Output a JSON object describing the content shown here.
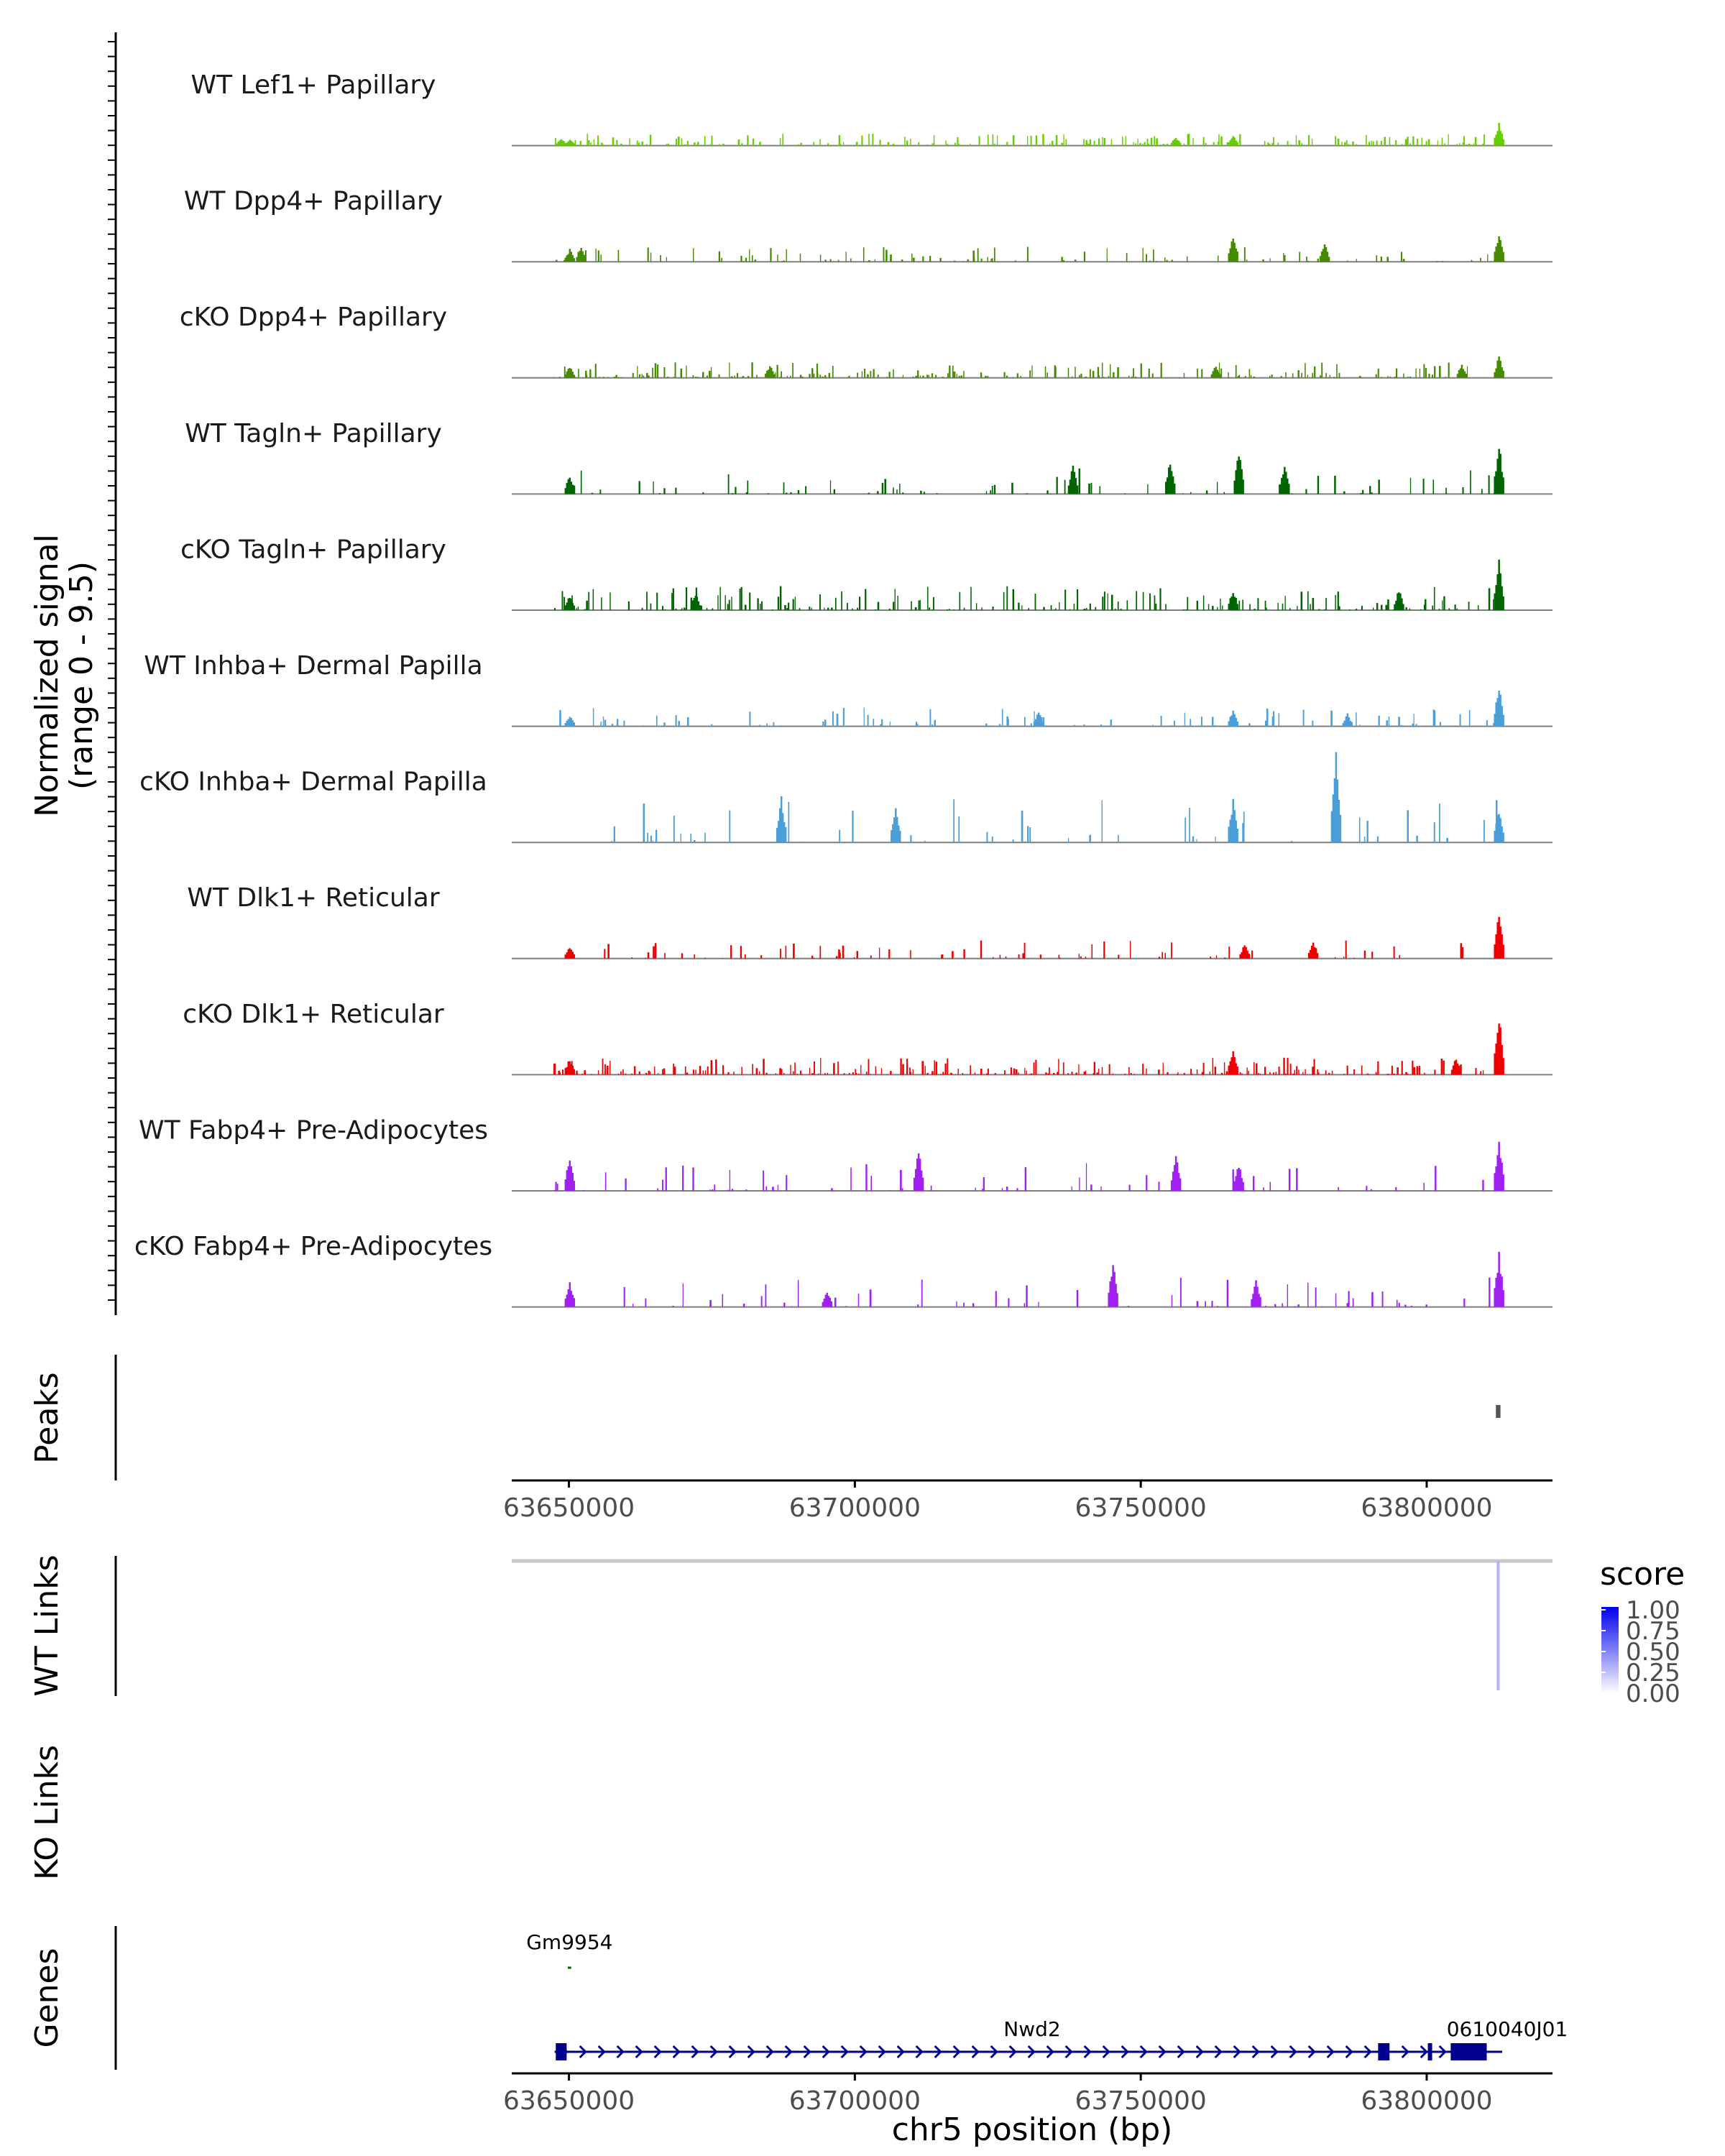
{
  "chart_data": {
    "type": "genome-coverage",
    "coverage": {
      "ylabel_line1": "Normalized signal",
      "ylabel_line2": "(range 0 - 9.5)",
      "ylim": [
        0,
        9.5
      ],
      "tracks": [
        {
          "name": "WT Lef1+ Papillary",
          "color": "#66cd00",
          "density": 0.85,
          "base": 0.35,
          "scale": 0.35,
          "peaks": [
            [
              63648500,
              0.7
            ],
            [
              63650000,
              0.6
            ],
            [
              63756000,
              0.8
            ],
            [
              63766000,
              1.0
            ],
            [
              63812500,
              2.0
            ]
          ]
        },
        {
          "name": "WT Dpp4+ Papillary",
          "color": "#458b00",
          "density": 0.35,
          "base": 0.4,
          "scale": 0.45,
          "peaks": [
            [
              63650000,
              1.1
            ],
            [
              63652000,
              1.4
            ],
            [
              63766000,
              2.6
            ],
            [
              63782000,
              1.6
            ],
            [
              63812500,
              2.6
            ]
          ]
        },
        {
          "name": "cKO Dpp4+ Papillary",
          "color": "#458b00",
          "density": 0.75,
          "base": 0.45,
          "scale": 0.45,
          "peaks": [
            [
              63650000,
              1.0
            ],
            [
              63685000,
              1.1
            ],
            [
              63763000,
              1.1
            ],
            [
              63806000,
              1.2
            ],
            [
              63812500,
              1.9
            ]
          ]
        },
        {
          "name": "WT Tagln+ Papillary",
          "color": "#006400",
          "density": 0.25,
          "base": 0.6,
          "scale": 0.9,
          "peaks": [
            [
              63650000,
              1.7
            ],
            [
              63738000,
              2.6
            ],
            [
              63755000,
              3.2
            ],
            [
              63767000,
              4.1
            ],
            [
              63775000,
              2.6
            ],
            [
              63812500,
              4.4
            ]
          ]
        },
        {
          "name": "cKO Tagln+ Papillary",
          "color": "#006400",
          "density": 0.6,
          "base": 0.55,
          "scale": 0.75,
          "peaks": [
            [
              63650000,
              1.3
            ],
            [
              63672000,
              1.6
            ],
            [
              63766000,
              1.9
            ],
            [
              63795000,
              1.9
            ],
            [
              63812500,
              4.5
            ]
          ]
        },
        {
          "name": "WT Inhba+ Dermal Papilla",
          "color": "#4a9fd8",
          "density": 0.3,
          "base": 0.5,
          "scale": 0.55,
          "peaks": [
            [
              63650000,
              1.0
            ],
            [
              63732000,
              1.4
            ],
            [
              63766000,
              1.5
            ],
            [
              63786000,
              1.1
            ],
            [
              63812500,
              3.8
            ]
          ]
        },
        {
          "name": "cKO Inhba+ Dermal Papilla",
          "color": "#4a9fd8",
          "density": 0.18,
          "base": 0.9,
          "scale": 1.4,
          "peaks": [
            [
              63687000,
              4.0
            ],
            [
              63707000,
              3.1
            ],
            [
              63766000,
              4.0
            ],
            [
              63784000,
              8.0
            ],
            [
              63812500,
              3.0
            ]
          ]
        },
        {
          "name": "WT Dlk1+ Reticular",
          "color": "#ee0000",
          "density": 0.3,
          "base": 0.45,
          "scale": 0.55,
          "peaks": [
            [
              63650000,
              1.1
            ],
            [
              63768000,
              1.3
            ],
            [
              63780000,
              1.6
            ],
            [
              63812500,
              4.2
            ]
          ]
        },
        {
          "name": "cKO Dlk1+ Reticular",
          "color": "#ee0000",
          "density": 0.8,
          "base": 0.45,
          "scale": 0.5,
          "peaks": [
            [
              63650000,
              1.5
            ],
            [
              63766000,
              2.3
            ],
            [
              63805000,
              1.6
            ],
            [
              63812500,
              5.4
            ]
          ]
        },
        {
          "name": "WT Fabp4+ Pre-Adipocytes",
          "color": "#a020f0",
          "density": 0.2,
          "base": 0.7,
          "scale": 0.9,
          "peaks": [
            [
              63650000,
              3.3
            ],
            [
              63711000,
              3.6
            ],
            [
              63756000,
              3.3
            ],
            [
              63767000,
              2.5
            ],
            [
              63812500,
              4.6
            ]
          ]
        },
        {
          "name": "cKO Fabp4+ Pre-Adipocytes",
          "color": "#a020f0",
          "density": 0.2,
          "base": 0.7,
          "scale": 0.9,
          "peaks": [
            [
              63650000,
              2.3
            ],
            [
              63695000,
              1.5
            ],
            [
              63745000,
              4.0
            ],
            [
              63770000,
              2.6
            ],
            [
              63812500,
              4.8
            ]
          ]
        }
      ]
    },
    "peaks_track": {
      "label": "Peaks",
      "peaks": [
        {
          "start": 63812100,
          "end": 63812900
        }
      ],
      "x_ticks": [
        "63650000",
        "63700000",
        "63750000",
        "63800000"
      ]
    },
    "wt_links": {
      "label": "WT Links",
      "links": [
        {
          "start": 63812400,
          "end": 63812600,
          "score": 0.3
        }
      ]
    },
    "ko_links": {
      "label": "KO Links",
      "links": []
    },
    "legend": {
      "title": "score",
      "ticks": [
        "1.00",
        "0.75",
        "0.50",
        "0.25",
        "0.00"
      ],
      "color_low": "#ffffff",
      "color_high": "#0000ee"
    },
    "genes": {
      "label": "Genes",
      "items": [
        {
          "name": "Gm9954",
          "start": 63649800,
          "end": 63650400,
          "strand": "-",
          "color": "#006400",
          "row": 0
        },
        {
          "name": "Nwd2",
          "start": 63647500,
          "end": 63806000,
          "strand": "+",
          "color": "#00008b",
          "row": 1,
          "exons": [
            [
              63647700,
              63649600
            ],
            [
              63791500,
              63793500
            ],
            [
              63800200,
              63800700
            ],
            [
              63804200,
              63806000
            ]
          ]
        },
        {
          "name": "0610040J01",
          "start": 63804300,
          "end": 63813200,
          "strand": "+",
          "color": "#00008b",
          "row": 1,
          "exons": [
            [
              63804300,
              63810500
            ]
          ]
        }
      ],
      "x_ticks": [
        "63650000",
        "63700000",
        "63750000",
        "63800000"
      ]
    },
    "xlim": [
      63640000,
      63822000
    ],
    "xlabel": "chr5 position (bp)"
  }
}
